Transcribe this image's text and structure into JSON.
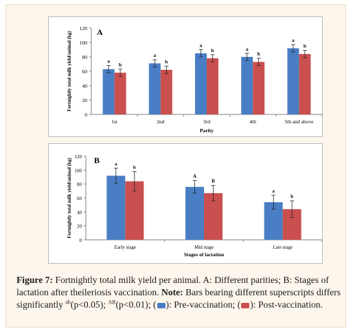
{
  "chart_data": [
    {
      "type": "bar",
      "panel_label": "A",
      "categories": [
        "1st",
        "2nd",
        "3rd",
        "4th",
        "5th and above"
      ],
      "xlabel": "Parity",
      "ylabel": "Fortnightly total milk yield/animal (kg)",
      "ylim": [
        0,
        120
      ],
      "yticks": [
        0,
        20,
        40,
        60,
        80,
        100,
        120
      ],
      "grid": false,
      "series": [
        {
          "values": [
            63,
            71,
            85,
            80,
            92
          ],
          "errors": [
            5,
            5,
            5,
            5,
            5
          ],
          "labels": [
            "a",
            "a",
            "a",
            "a",
            "a"
          ],
          "color": "#4a7ec4"
        },
        {
          "values": [
            58,
            62,
            78,
            73,
            84
          ],
          "errors": [
            5,
            5,
            5,
            5,
            5
          ],
          "labels": [
            "b",
            "b",
            "b",
            "b",
            "b"
          ],
          "color": "#c9504f"
        }
      ]
    },
    {
      "type": "bar",
      "panel_label": "B",
      "categories": [
        "Early stage",
        "Mid stage",
        "Late stage"
      ],
      "xlabel": "Stages of lactation",
      "ylabel": "Fortnightly total milk yield/animal (kg)",
      "ylim": [
        0,
        120
      ],
      "yticks": [
        0,
        20,
        40,
        60,
        80,
        100,
        120
      ],
      "grid": false,
      "series": [
        {
          "values": [
            92,
            76,
            54
          ],
          "errors": [
            11,
            9,
            10
          ],
          "labels": [
            "a",
            "A",
            "a"
          ],
          "color": "#4a7ec4"
        },
        {
          "values": [
            84,
            67,
            44
          ],
          "errors": [
            14,
            11,
            12
          ],
          "labels": [
            "b",
            "B",
            "b"
          ],
          "color": "#c9504f"
        }
      ]
    }
  ],
  "caption": {
    "figure_label": "Figure 7:",
    "text1": " Fortnightly total milk yield per animal. A: Different parities; B: Stages of lactation after theileriosis vaccination. ",
    "note_label": "Note:",
    "text2": " Bars bearing different superscripts differs significantly ",
    "sup1": "ab",
    "p1": "(p<0.05);  ",
    "sup2": "AB",
    "p2": "(p<0.01); (",
    "after_blue": "): Pre-vaccination; (",
    "after_red": "): Post-vaccination."
  }
}
